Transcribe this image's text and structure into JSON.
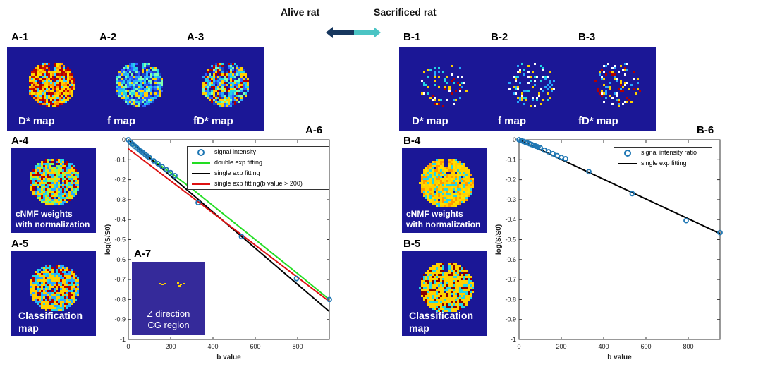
{
  "header": {
    "left": "Alive rat",
    "right": "Sacrificed rat"
  },
  "colors": {
    "map_bg": "#1b1796",
    "arrow_dark": "#17375e",
    "arrow_light": "#4bc4c4",
    "signal": "#1f77b4",
    "double": "#22dd22",
    "single": "#000000",
    "single200": "#dd1111"
  },
  "panels": {
    "A1": "A-1",
    "A2": "A-2",
    "A3": "A-3",
    "A4": "A-4",
    "A5": "A-5",
    "A6": "A-6",
    "A7": "A-7",
    "B1": "B-1",
    "B2": "B-2",
    "B3": "B-3",
    "B4": "B-4",
    "B5": "B-5",
    "B6": "B-6"
  },
  "maps": {
    "dstar": "D* map",
    "f": "f map",
    "fdstar": "fD* map"
  },
  "cnmf": {
    "line1": "cNMF weights",
    "line2": "with normalization"
  },
  "classification": {
    "line1": "Classification",
    "line2": "map"
  },
  "a7_caption": {
    "line1": "Z direction",
    "line2": "CG region"
  },
  "chart_data": [
    {
      "type": "line",
      "panel": "A-6",
      "xlabel": "b value",
      "ylabel": "log(S/S0)",
      "xlim": [
        0,
        950
      ],
      "ylim": [
        -1,
        0
      ],
      "xticks": [
        "0",
        "200",
        "400",
        "600",
        "800"
      ],
      "yticks": [
        "0",
        "-0.1",
        "-0.2",
        "-0.3",
        "-0.4",
        "-0.5",
        "-0.6",
        "-0.7",
        "-0.8",
        "-0.9",
        "-1"
      ],
      "legend": [
        "signal intensity",
        "double exp fitting",
        "single exp fitting",
        "single exp fitting(b value > 200)"
      ],
      "legend_position": "top-right",
      "series": [
        {
          "name": "signal intensity",
          "style": "marker",
          "x": [
            0,
            10,
            20,
            30,
            40,
            50,
            60,
            70,
            80,
            90,
            100,
            120,
            140,
            160,
            180,
            200,
            220,
            330,
            535,
            795,
            950
          ],
          "y": [
            0,
            -0.012,
            -0.022,
            -0.032,
            -0.041,
            -0.05,
            -0.058,
            -0.066,
            -0.074,
            -0.082,
            -0.09,
            -0.106,
            -0.12,
            -0.135,
            -0.15,
            -0.165,
            -0.18,
            -0.315,
            -0.485,
            -0.695,
            -0.8
          ]
        },
        {
          "name": "double exp fitting",
          "style": "line",
          "x": [
            0,
            50,
            100,
            200,
            300,
            400,
            500,
            600,
            700,
            800,
            950
          ],
          "y": [
            0,
            -0.05,
            -0.09,
            -0.165,
            -0.245,
            -0.33,
            -0.415,
            -0.5,
            -0.585,
            -0.67,
            -0.8
          ]
        },
        {
          "name": "single exp fitting",
          "style": "line",
          "x": [
            0,
            950
          ],
          "y": [
            0,
            -0.86
          ]
        },
        {
          "name": "single exp fitting(b value > 200)",
          "style": "line",
          "x": [
            0,
            950
          ],
          "y": [
            -0.045,
            -0.81
          ]
        }
      ]
    },
    {
      "type": "line",
      "panel": "B-6",
      "xlabel": "b value",
      "ylabel": "log(S/S0)",
      "xlim": [
        0,
        950
      ],
      "ylim": [
        -1,
        0
      ],
      "xticks": [
        "0",
        "200",
        "400",
        "600",
        "800"
      ],
      "yticks": [
        "0",
        "-0.1",
        "-0.2",
        "-0.3",
        "-0.4",
        "-0.5",
        "-0.6",
        "-0.7",
        "-0.8",
        "-0.9",
        "-1"
      ],
      "legend": [
        "signal intensity ratio",
        "single exp fitting"
      ],
      "legend_position": "top-right",
      "series": [
        {
          "name": "signal intensity ratio",
          "style": "marker",
          "x": [
            0,
            10,
            20,
            30,
            40,
            50,
            60,
            70,
            80,
            90,
            100,
            120,
            140,
            160,
            180,
            200,
            220,
            330,
            535,
            790,
            950
          ],
          "y": [
            0,
            -0.004,
            -0.008,
            -0.012,
            -0.016,
            -0.02,
            -0.024,
            -0.028,
            -0.032,
            -0.036,
            -0.04,
            -0.052,
            -0.06,
            -0.07,
            -0.08,
            -0.088,
            -0.095,
            -0.16,
            -0.27,
            -0.405,
            -0.465
          ]
        },
        {
          "name": "single exp fitting",
          "style": "line",
          "x": [
            0,
            950
          ],
          "y": [
            0,
            -0.47
          ]
        }
      ]
    }
  ]
}
